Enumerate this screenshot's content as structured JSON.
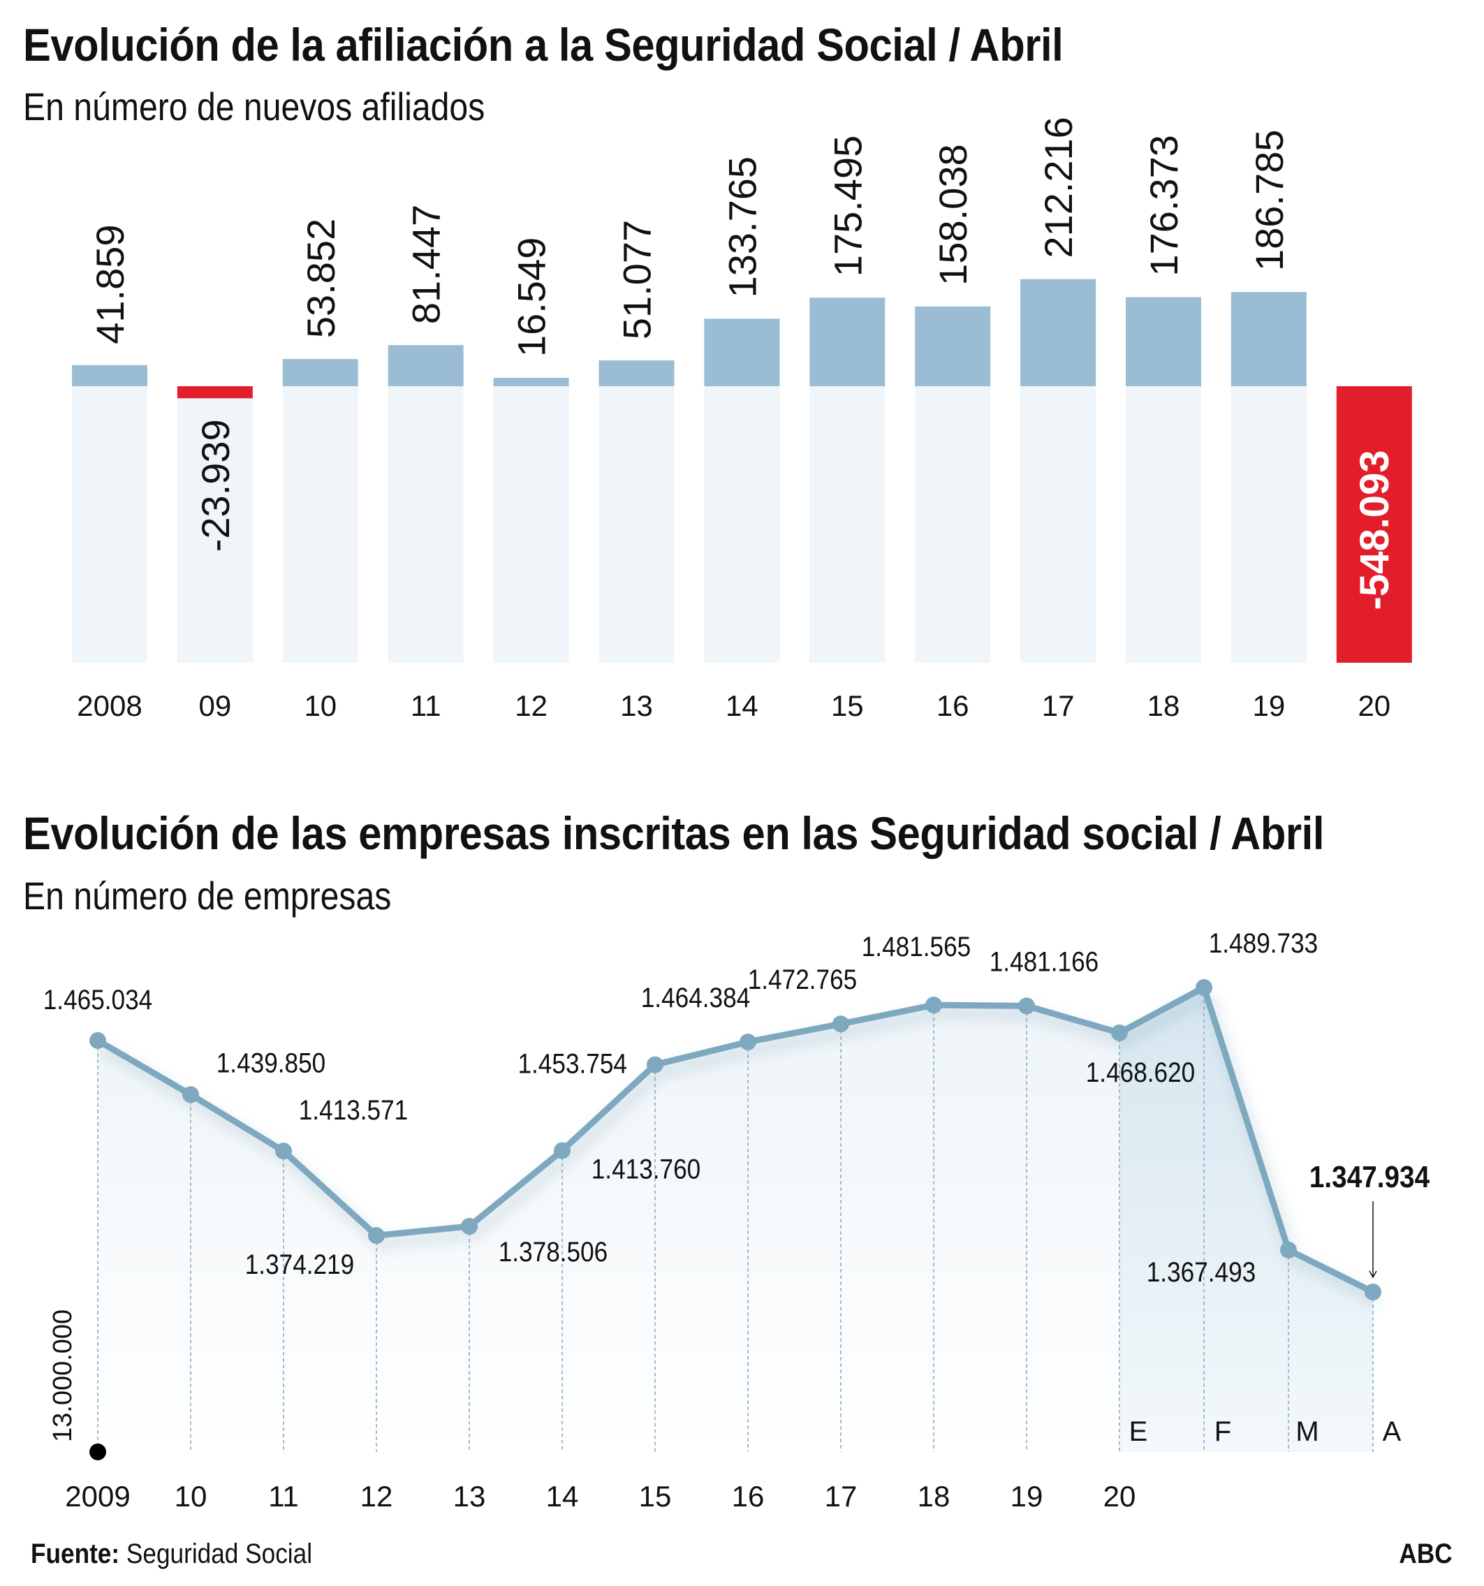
{
  "colors": {
    "bar_positive": "#9bbdd3",
    "bar_negative": "#e31e2b",
    "bar_track": "#eff5f9",
    "line": "#7ea8bf",
    "area_light": "#eef4f8",
    "area_highlight": "#d6e6ef",
    "grid_dash": "#9dbdd0",
    "text": "#111111"
  },
  "footer": {
    "source_label": "Fuente:",
    "source_value": "Seguridad Social",
    "brand": "ABC"
  },
  "chart_data": [
    {
      "type": "bar",
      "title": "Evolución de la afiliación a la Seguridad Social / Abril",
      "subtitle": "En número de nuevos afiliados",
      "xlabel": "",
      "ylabel": "",
      "grid": false,
      "categories": [
        "2008",
        "09",
        "10",
        "11",
        "12",
        "13",
        "14",
        "15",
        "16",
        "17",
        "18",
        "19",
        "20"
      ],
      "values": [
        41859,
        -23939,
        53852,
        81447,
        16549,
        51077,
        133765,
        175495,
        158038,
        212216,
        176373,
        186785,
        -548093
      ],
      "value_labels": [
        "41.859",
        "-23.939",
        "53.852",
        "81.447",
        "16.549",
        "51.077",
        "133.765",
        "175.495",
        "158.038",
        "212.216",
        "176.373",
        "186.785",
        "-548.093"
      ],
      "ylim": [
        -548093,
        212216
      ]
    },
    {
      "type": "line",
      "title": "Evolución de las empresas inscritas en las Seguridad social / Abril",
      "subtitle": "En número de empresas",
      "xlabel": "",
      "ylabel": "",
      "grid": false,
      "y_axis_label": "13.000.000",
      "x": [
        "2009",
        "10",
        "11",
        "12",
        "13",
        "14",
        "15",
        "16",
        "17",
        "18",
        "19",
        "20-E",
        "20-F",
        "20-M",
        "20-A"
      ],
      "year_tick_labels": [
        "2009",
        "10",
        "11",
        "12",
        "13",
        "14",
        "15",
        "16",
        "17",
        "18",
        "19",
        "20"
      ],
      "month_tick_labels": [
        "E",
        "F",
        "M",
        "A"
      ],
      "values": [
        1465034,
        1439850,
        1413571,
        1374219,
        1378506,
        1413760,
        1453754,
        1464384,
        1472765,
        1481565,
        1481166,
        1468620,
        1489733,
        1367493,
        1347934
      ],
      "value_labels": [
        "1.465.034",
        "1.439.850",
        "1.413.571",
        "1.374.219",
        "1.378.506",
        "1.413.760",
        "1.453.754",
        "1.464.384",
        "1.472.765",
        "1.481.565",
        "1.481.166",
        "1.468.620",
        "1.489.733",
        "1.367.493",
        "1.347.934"
      ],
      "label_side": [
        "above",
        "above",
        "above",
        "below",
        "below",
        "below",
        "left",
        "above",
        "above",
        "above",
        "above",
        "below",
        "above",
        "below",
        "above"
      ],
      "highlight_index": 14,
      "ylim": [
        1300000,
        1500000
      ]
    }
  ]
}
